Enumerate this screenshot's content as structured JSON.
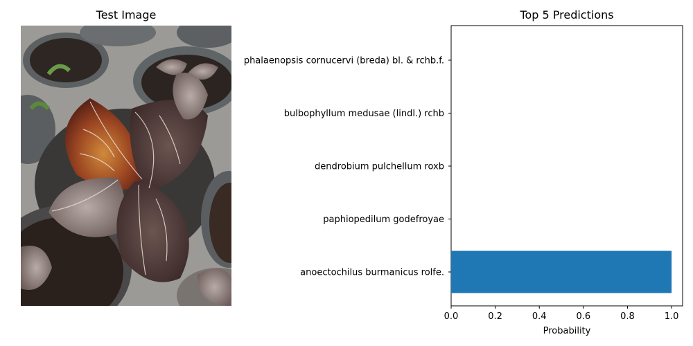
{
  "left_panel": {
    "title": "Test Image",
    "image_description_icon": "plant-photo"
  },
  "chart_data": {
    "type": "bar",
    "orientation": "horizontal",
    "title": "Top 5 Predictions",
    "xlabel": "Probability",
    "ylabel": "",
    "xlim": [
      0,
      1.05
    ],
    "xticks": [
      0.0,
      0.2,
      0.4,
      0.6,
      0.8,
      1.0
    ],
    "xtick_labels": [
      "0.0",
      "0.2",
      "0.4",
      "0.6",
      "0.8",
      "1.0"
    ],
    "categories": [
      "anoectochilus burmanicus rolfe.",
      "paphiopedilum godefroyae",
      "dendrobium pulchellum roxb",
      "bulbophyllum medusae (lindl.) rchb",
      "phalaenopsis cornucervi (breda) bl. & rchb.f."
    ],
    "values": [
      1.0,
      0.0,
      0.0,
      0.0,
      0.0
    ],
    "bar_color": "#1f77b4",
    "grid": false,
    "legend": "none"
  }
}
